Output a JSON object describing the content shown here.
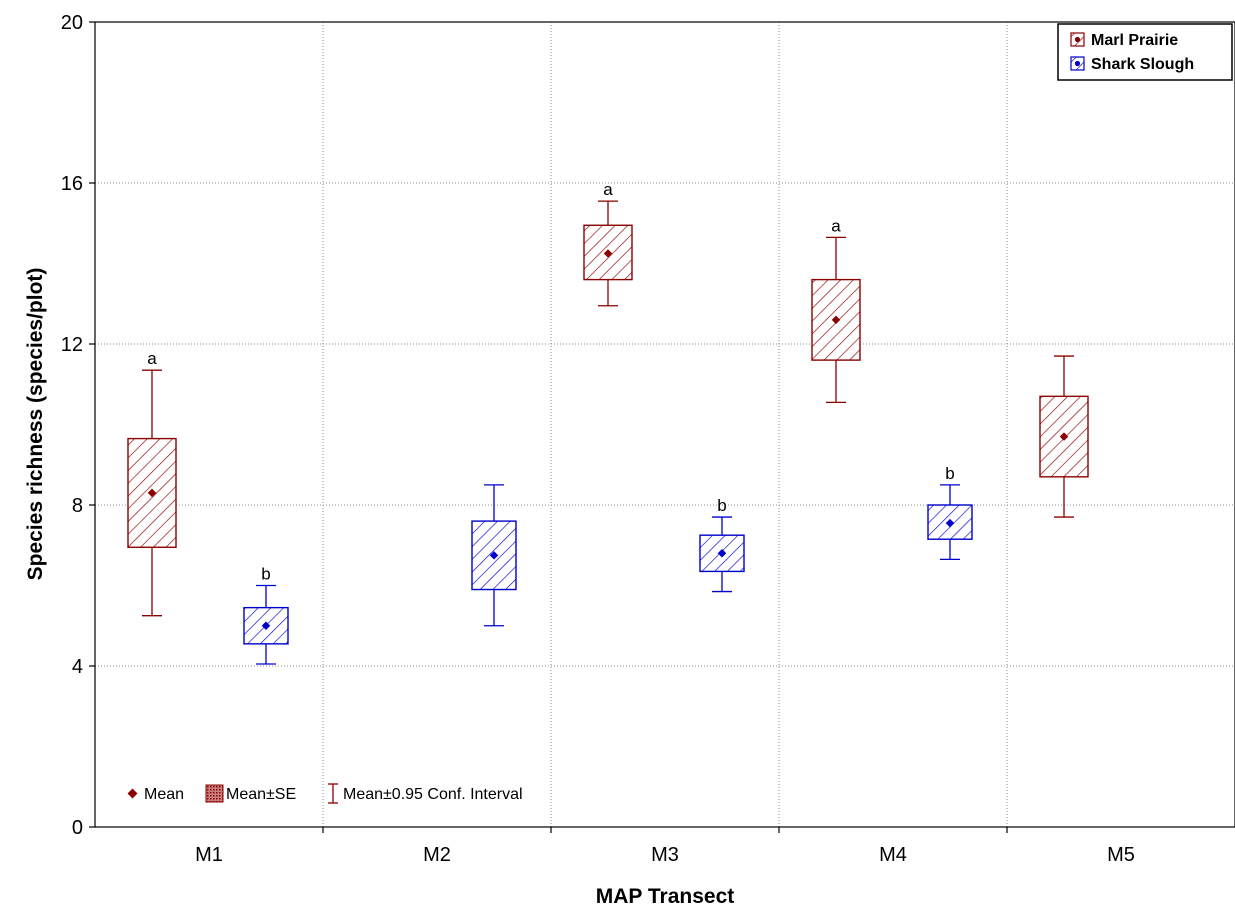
{
  "chart_data": {
    "type": "box",
    "xlabel": "MAP Transect",
    "ylabel": "Species richness (species/plot)",
    "categories": [
      "M1",
      "M2",
      "M3",
      "M4",
      "M5"
    ],
    "ylim": [
      0,
      20
    ],
    "yticks": [
      0,
      4,
      8,
      12,
      16,
      20
    ],
    "grid": true,
    "legend_position": "top-right",
    "series": [
      {
        "name": "Marl Prairie",
        "color": "#8b0000",
        "points": [
          {
            "category": "M1",
            "mean": 8.3,
            "se_low": 6.95,
            "se_high": 9.65,
            "ci_low": 5.25,
            "ci_high": 11.35,
            "annotation": "a"
          },
          {
            "category": "M2",
            "mean": null,
            "se_low": null,
            "se_high": null,
            "ci_low": null,
            "ci_high": null,
            "annotation": ""
          },
          {
            "category": "M3",
            "mean": 14.25,
            "se_low": 13.6,
            "se_high": 14.95,
            "ci_low": 12.95,
            "ci_high": 15.55,
            "annotation": "a"
          },
          {
            "category": "M4",
            "mean": 12.6,
            "se_low": 11.6,
            "se_high": 13.6,
            "ci_low": 10.55,
            "ci_high": 14.65,
            "annotation": "a"
          },
          {
            "category": "M5",
            "mean": 9.7,
            "se_low": 8.7,
            "se_high": 10.7,
            "ci_low": 7.7,
            "ci_high": 11.7,
            "annotation": ""
          }
        ]
      },
      {
        "name": "Shark Slough",
        "color": "#0000cd",
        "points": [
          {
            "category": "M1",
            "mean": 5.0,
            "se_low": 4.55,
            "se_high": 5.45,
            "ci_low": 4.05,
            "ci_high": 6.0,
            "annotation": "b"
          },
          {
            "category": "M2",
            "mean": 6.75,
            "se_low": 5.9,
            "se_high": 7.6,
            "ci_low": 5.0,
            "ci_high": 8.5,
            "annotation": ""
          },
          {
            "category": "M3",
            "mean": 6.8,
            "se_low": 6.35,
            "se_high": 7.25,
            "ci_low": 5.85,
            "ci_high": 7.7,
            "annotation": "b"
          },
          {
            "category": "M4",
            "mean": 7.55,
            "se_low": 7.15,
            "se_high": 8.0,
            "ci_low": 6.65,
            "ci_high": 8.5,
            "annotation": "b"
          },
          {
            "category": "M5",
            "mean": null,
            "se_low": null,
            "se_high": null,
            "ci_low": null,
            "ci_high": null,
            "annotation": ""
          }
        ]
      }
    ],
    "key": {
      "mean_label": "Mean",
      "se_label": "Mean±SE",
      "ci_label": "Mean±0.95 Conf. Interval"
    }
  }
}
